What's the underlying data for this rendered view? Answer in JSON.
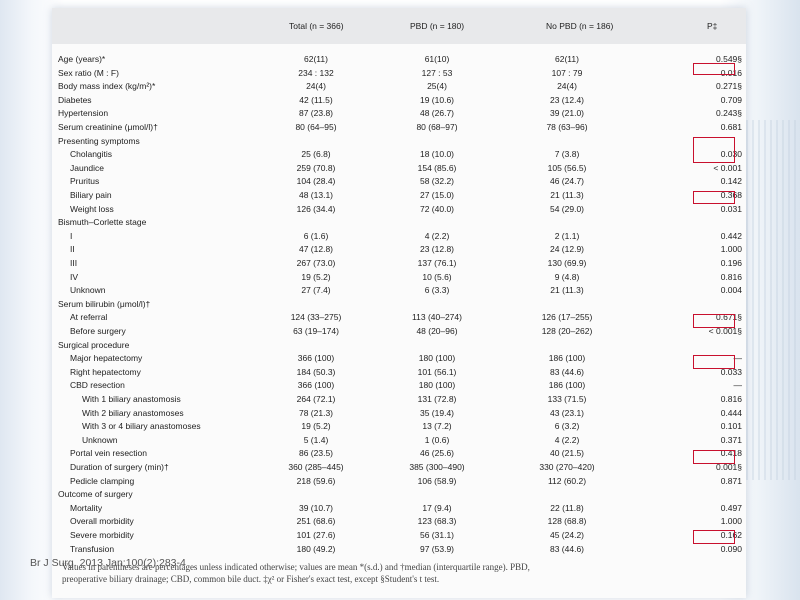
{
  "header": {
    "total": "Total (n = 366)",
    "pbd": "PBD (n = 180)",
    "nopbd": "No PBD (n = 186)",
    "p": "P‡"
  },
  "rows": [
    {
      "label": "Age (years)*",
      "total": "62(11)",
      "pbd": "61(10)",
      "nopbd": "62(11)",
      "p": "0.549§",
      "indent": 0
    },
    {
      "label": "Sex ratio (M : F)",
      "total": "234 : 132",
      "pbd": "127 : 53",
      "nopbd": "107 : 79",
      "p": "0.016",
      "indent": 0
    },
    {
      "label": "Body mass index (kg/m²)*",
      "total": "24(4)",
      "pbd": "25(4)",
      "nopbd": "24(4)",
      "p": "0.271§",
      "indent": 0
    },
    {
      "label": "Diabetes",
      "total": "42 (11.5)",
      "pbd": "19 (10.6)",
      "nopbd": "23 (12.4)",
      "p": "0.709",
      "indent": 0
    },
    {
      "label": "Hypertension",
      "total": "87 (23.8)",
      "pbd": "48 (26.7)",
      "nopbd": "39 (21.0)",
      "p": "0.243§",
      "indent": 0
    },
    {
      "label": "Serum creatinine (μmol/l)†",
      "total": "80 (64–95)",
      "pbd": "80 (68–97)",
      "nopbd": "78 (63–96)",
      "p": "0.681",
      "indent": 0
    },
    {
      "label": "Presenting symptoms",
      "total": "",
      "pbd": "",
      "nopbd": "",
      "p": "",
      "indent": 0
    },
    {
      "label": "Cholangitis",
      "total": "25 (6.8)",
      "pbd": "18 (10.0)",
      "nopbd": "7 (3.8)",
      "p": "0.030",
      "indent": 1
    },
    {
      "label": "Jaundice",
      "total": "259 (70.8)",
      "pbd": "154 (85.6)",
      "nopbd": "105 (56.5)",
      "p": "< 0.001",
      "indent": 1
    },
    {
      "label": "Pruritus",
      "total": "104 (28.4)",
      "pbd": "58 (32.2)",
      "nopbd": "46 (24.7)",
      "p": "0.142",
      "indent": 1
    },
    {
      "label": "Biliary pain",
      "total": "48 (13.1)",
      "pbd": "27 (15.0)",
      "nopbd": "21 (11.3)",
      "p": "0.368",
      "indent": 1
    },
    {
      "label": "Weight loss",
      "total": "126 (34.4)",
      "pbd": "72 (40.0)",
      "nopbd": "54 (29.0)",
      "p": "0.031",
      "indent": 1
    },
    {
      "label": "Bismuth–Corlette stage",
      "total": "",
      "pbd": "",
      "nopbd": "",
      "p": "",
      "indent": 0
    },
    {
      "label": "I",
      "total": "6 (1.6)",
      "pbd": "4 (2.2)",
      "nopbd": "2 (1.1)",
      "p": "0.442",
      "indent": 1
    },
    {
      "label": "II",
      "total": "47 (12.8)",
      "pbd": "23 (12.8)",
      "nopbd": "24 (12.9)",
      "p": "1.000",
      "indent": 1
    },
    {
      "label": "III",
      "total": "267 (73.0)",
      "pbd": "137 (76.1)",
      "nopbd": "130 (69.9)",
      "p": "0.196",
      "indent": 1
    },
    {
      "label": "IV",
      "total": "19 (5.2)",
      "pbd": "10 (5.6)",
      "nopbd": "9 (4.8)",
      "p": "0.816",
      "indent": 1
    },
    {
      "label": "Unknown",
      "total": "27 (7.4)",
      "pbd": "6 (3.3)",
      "nopbd": "21 (11.3)",
      "p": "0.004",
      "indent": 1
    },
    {
      "label": "Serum bilirubin (μmol/l)†",
      "total": "",
      "pbd": "",
      "nopbd": "",
      "p": "",
      "indent": 0
    },
    {
      "label": "At referral",
      "total": "124 (33–275)",
      "pbd": "113 (40–274)",
      "nopbd": "126 (17–255)",
      "p": "0.671§",
      "indent": 1
    },
    {
      "label": "Before surgery",
      "total": "63 (19–174)",
      "pbd": "48 (20–96)",
      "nopbd": "128 (20–262)",
      "p": "< 0.001§",
      "indent": 1
    },
    {
      "label": "Surgical procedure",
      "total": "",
      "pbd": "",
      "nopbd": "",
      "p": "",
      "indent": 0
    },
    {
      "label": "Major hepatectomy",
      "total": "366 (100)",
      "pbd": "180 (100)",
      "nopbd": "186 (100)",
      "p": "—",
      "indent": 1
    },
    {
      "label": "Right hepatectomy",
      "total": "184 (50.3)",
      "pbd": "101 (56.1)",
      "nopbd": "83 (44.6)",
      "p": "0.033",
      "indent": 1
    },
    {
      "label": "CBD resection",
      "total": "366 (100)",
      "pbd": "180 (100)",
      "nopbd": "186 (100)",
      "p": "—",
      "indent": 1
    },
    {
      "label": "With 1 biliary anastomosis",
      "total": "264 (72.1)",
      "pbd": "131 (72.8)",
      "nopbd": "133 (71.5)",
      "p": "0.816",
      "indent": 2
    },
    {
      "label": "With 2 biliary anastomoses",
      "total": "78 (21.3)",
      "pbd": "35 (19.4)",
      "nopbd": "43 (23.1)",
      "p": "0.444",
      "indent": 2
    },
    {
      "label": "With 3 or 4 biliary anastomoses",
      "total": "19 (5.2)",
      "pbd": "13 (7.2)",
      "nopbd": "6 (3.2)",
      "p": "0.101",
      "indent": 2
    },
    {
      "label": "Unknown",
      "total": "5 (1.4)",
      "pbd": "1 (0.6)",
      "nopbd": "4 (2.2)",
      "p": "0.371",
      "indent": 2
    },
    {
      "label": "Portal vein resection",
      "total": "86 (23.5)",
      "pbd": "46 (25.6)",
      "nopbd": "40 (21.5)",
      "p": "0.418",
      "indent": 1
    },
    {
      "label": "Duration of surgery (min)†",
      "total": "360 (285–445)",
      "pbd": "385 (300–490)",
      "nopbd": "330 (270–420)",
      "p": "0.001§",
      "indent": 1
    },
    {
      "label": "Pedicle clamping",
      "total": "218 (59.6)",
      "pbd": "106 (58.9)",
      "nopbd": "112 (60.2)",
      "p": "0.871",
      "indent": 1
    },
    {
      "label": "Outcome of surgery",
      "total": "",
      "pbd": "",
      "nopbd": "",
      "p": "",
      "indent": 0
    },
    {
      "label": "Mortality",
      "total": "39 (10.7)",
      "pbd": "17 (9.4)",
      "nopbd": "22 (11.8)",
      "p": "0.497",
      "indent": 1
    },
    {
      "label": "Overall morbidity",
      "total": "251 (68.6)",
      "pbd": "123 (68.3)",
      "nopbd": "128 (68.8)",
      "p": "1.000",
      "indent": 1
    },
    {
      "label": "Severe morbidity",
      "total": "101 (27.6)",
      "pbd": "56 (31.1)",
      "nopbd": "45 (24.2)",
      "p": "0.162",
      "indent": 1
    },
    {
      "label": "Transfusion",
      "total": "180 (49.2)",
      "pbd": "97 (53.9)",
      "nopbd": "83 (44.6)",
      "p": "0.090",
      "indent": 1
    }
  ],
  "footnote": "Values in parentheses are percentages unless indicated otherwise; values are mean *(s.d.) and †median (interquartile range). PBD, preoperative biliary drainage; CBD, common bile duct. ‡χ² or Fisher's exact test, except §Student's t test.",
  "citation": "Br J Surg. 2013 Jan;100(2):283-4"
}
